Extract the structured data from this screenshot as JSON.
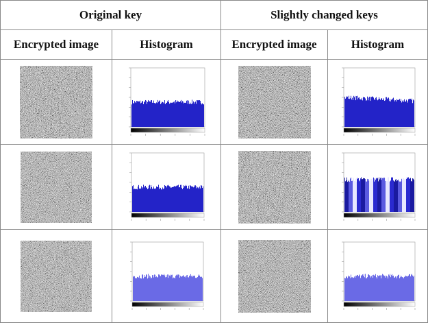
{
  "table": {
    "header": [
      "Original key",
      "Slightly changed keys"
    ],
    "subheader": [
      "Encrypted image",
      "Histogram",
      "Encrypted image",
      "Histogram"
    ]
  }
}
